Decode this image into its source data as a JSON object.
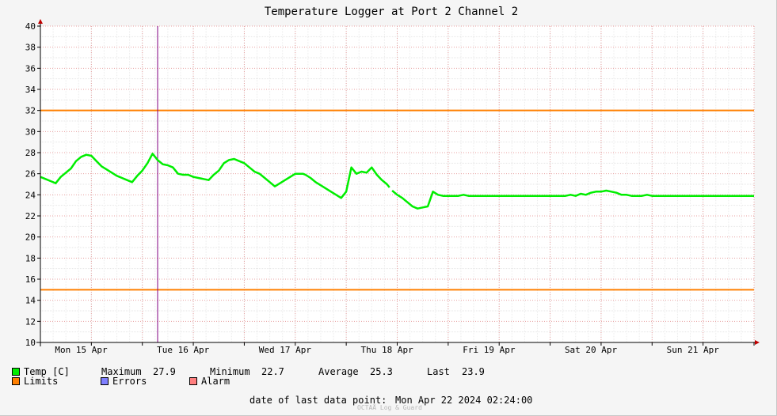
{
  "chart_data": {
    "type": "line",
    "title": "Temperature Logger at Port 2 Channel 2",
    "ylim": [
      10,
      40
    ],
    "y_ticks": [
      10,
      12,
      14,
      16,
      18,
      20,
      22,
      24,
      26,
      28,
      30,
      32,
      34,
      36,
      38,
      40
    ],
    "x_ticks": [
      "Mon 15 Apr",
      "Tue 16 Apr",
      "Wed 17 Apr",
      "Thu 18 Apr",
      "Fri 19 Apr",
      "Sat 20 Apr",
      "Sun 21 Apr"
    ],
    "grid": true,
    "limits": [
      32,
      15
    ],
    "series": [
      {
        "name": "Temp [C]",
        "color": "#00ee00",
        "x": [
          0.0,
          0.1,
          0.2,
          0.3,
          0.4,
          0.5,
          0.6,
          0.7,
          0.8,
          0.9,
          1.0,
          1.1,
          1.2,
          1.3,
          1.4,
          1.5,
          1.6,
          1.7,
          1.8,
          1.9,
          2.0,
          2.1,
          2.2,
          2.3,
          2.4,
          2.5,
          2.6,
          2.7,
          2.8,
          2.9,
          3.0,
          3.1,
          3.2,
          3.3,
          3.4,
          3.5,
          3.6,
          3.7,
          3.8,
          3.9,
          4.0,
          4.1,
          4.15,
          4.2,
          4.3,
          4.4,
          4.5,
          4.6,
          4.7,
          4.8,
          4.9,
          5.0,
          5.1,
          5.15,
          5.2,
          5.3,
          5.4,
          5.5,
          5.6,
          5.7,
          5.8,
          5.9,
          6.0,
          6.1,
          6.2,
          6.3,
          6.4,
          6.5,
          6.6,
          6.7,
          6.8,
          6.85
        ],
        "values": [
          25.7,
          25.5,
          25.3,
          25.1,
          25.7,
          26.1,
          26.5,
          27.2,
          27.6,
          27.8,
          27.7,
          27.2,
          26.7,
          26.4,
          26.1,
          25.8,
          25.6,
          25.4,
          25.2,
          25.8,
          26.3,
          27.0,
          27.9,
          27.3,
          26.9,
          26.8,
          26.6,
          26.0,
          25.9,
          25.9,
          25.7,
          25.6,
          25.5,
          25.4,
          25.9,
          26.3,
          27.0,
          27.3,
          27.4,
          27.2,
          27.0,
          26.6,
          26.4,
          26.2,
          26.0,
          25.6,
          25.2,
          24.8,
          25.1,
          25.4,
          25.7,
          26.0,
          26.0,
          26.0,
          25.9,
          25.6,
          25.2,
          24.9,
          24.6,
          24.3,
          24.0,
          23.7,
          24.3,
          26.6,
          26.0,
          26.2,
          26.1,
          26.6,
          25.9,
          25.4,
          25.0,
          24.7
        ]
      },
      {
        "name": "Temp [C] (cont.)",
        "color": "#00ee00",
        "x": [
          6.9,
          7.0,
          7.1,
          7.2,
          7.3,
          7.4,
          7.5,
          7.6,
          7.7,
          7.8,
          7.9,
          8.0,
          8.1,
          8.2,
          8.3,
          8.4,
          8.5,
          8.6,
          8.7,
          8.8,
          8.9,
          9.0,
          9.1,
          9.2,
          9.3,
          9.4,
          9.5,
          9.6,
          9.7,
          9.8,
          9.9,
          10.0,
          10.1,
          10.2,
          10.3,
          10.4,
          10.5,
          10.6,
          10.7,
          10.8,
          10.9,
          11.0,
          11.1,
          11.2,
          11.3,
          11.4,
          11.5,
          11.6,
          11.7,
          11.8,
          11.9,
          12.0,
          12.1,
          12.2,
          12.3,
          12.4,
          12.5,
          12.6,
          12.7,
          12.8,
          12.9,
          13.0,
          13.1,
          13.2,
          13.3,
          13.4,
          13.5,
          13.6,
          13.7,
          13.8,
          13.9,
          14.0
        ],
        "values": [
          24.4,
          24.0,
          23.7,
          23.3,
          22.9,
          22.7,
          22.8,
          22.9,
          24.3,
          24.0,
          23.9,
          23.9,
          23.9,
          23.9,
          24.0,
          23.9,
          23.9,
          23.9,
          23.9,
          23.9,
          23.9,
          23.9,
          23.9,
          23.9,
          23.9,
          23.9,
          23.9,
          23.9,
          23.9,
          23.9,
          23.9,
          23.9,
          23.9,
          23.9,
          23.9,
          24.0,
          23.9,
          24.1,
          24.0,
          24.2,
          24.3,
          24.3,
          24.4,
          24.3,
          24.2,
          24.0,
          24.0,
          23.9,
          23.9,
          23.9,
          24.0,
          23.9,
          23.9,
          23.9,
          23.9,
          23.9,
          23.9,
          23.9,
          23.9,
          23.9,
          23.9,
          23.9,
          23.9,
          23.9,
          23.9,
          23.9,
          23.9,
          23.9,
          23.9,
          23.9,
          23.9,
          23.9
        ]
      }
    ],
    "vertical_marker": "Tue 16 Apr"
  },
  "legend": {
    "temp_label": "Temp [C]",
    "maximum_label": "Maximum",
    "maximum_value": "27.9",
    "minimum_label": "Minimum",
    "minimum_value": "22.7",
    "average_label": "Average",
    "average_value": "25.3",
    "last_label": "Last",
    "last_value": "23.9",
    "limits_label": "Limits",
    "errors_label": "Errors",
    "alarm_label": "Alarm",
    "temp_color": "#00ee00",
    "limits_color": "#ff7f00",
    "errors_color": "#7f7fff",
    "alarm_color": "#ff7f7f"
  },
  "footer": {
    "last_point_label": "date of last data point:",
    "last_point_value": "Mon Apr 22 2024 02:24:00",
    "watermark": "OCTAÅ Log & Guard"
  }
}
